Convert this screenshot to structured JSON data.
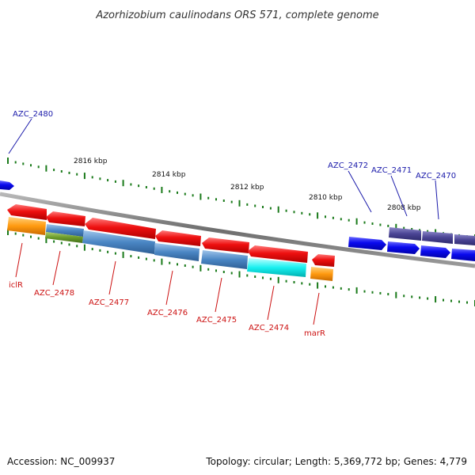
{
  "title": "Azorhizobium caulinodans ORS 571, complete genome",
  "footer": {
    "accession": "Accession: NC_009937",
    "summary": "Topology: circular; Length: 5,369,772 bp; Genes: 4,779"
  },
  "colors": {
    "forward_gene": "#0a0aee",
    "reverse_gene": "#ee0a0a",
    "forward_label": "#1a1aaa",
    "reverse_label": "#cc1111",
    "tick": "#1a7a1a",
    "backbone": "#7a7a7a"
  },
  "scale": {
    "ticks_kbp": [
      "2816 kbp",
      "2814 kbp",
      "2812 kbp",
      "2810 kbp",
      "2808 kbp"
    ]
  },
  "genes_forward": [
    "AZC_2480",
    "AZC_2472",
    "AZC_2471",
    "AZC_2470"
  ],
  "genes_reverse": [
    "iclR",
    "AZC_2478",
    "AZC_2477",
    "AZC_2476",
    "AZC_2475",
    "AZC_2474",
    "marR"
  ]
}
